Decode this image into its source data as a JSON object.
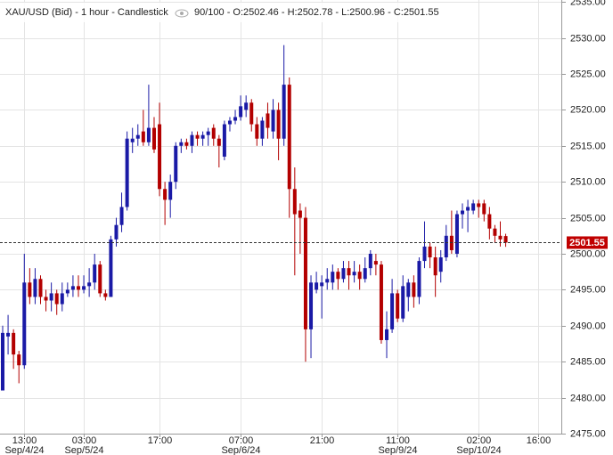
{
  "chart_data": {
    "type": "candlestick",
    "title": "XAU/USD (Bid) - 1 hour - Candlestick",
    "subtitle": "90/100 - O:2502.46 - H:2502.78 - L:2500.96 - C:2501.55",
    "categories": [
      null,
      null,
      null,
      null,
      "13:00",
      null,
      null,
      null,
      null,
      null,
      null,
      null,
      null,
      null,
      null,
      "03:00",
      null,
      null,
      null,
      null,
      null,
      null,
      null,
      null,
      null,
      null,
      null,
      null,
      null,
      "17:00",
      null,
      null,
      null,
      null,
      null,
      null,
      null,
      null,
      null,
      null,
      null,
      null,
      null,
      null,
      "07:00",
      null,
      null,
      null,
      null,
      null,
      null,
      null,
      null,
      null,
      null,
      null,
      null,
      null,
      null,
      "21:00",
      null,
      null,
      null,
      null,
      null,
      null,
      null,
      null,
      null,
      null,
      null,
      null,
      null,
      "11:00",
      null,
      null,
      null,
      null,
      null,
      null,
      null,
      null,
      null,
      null,
      null,
      null,
      null,
      null,
      "02:00",
      null,
      null,
      null,
      null,
      null,
      null,
      null,
      null,
      null,
      null,
      "16:00"
    ],
    "x_dates": [
      null,
      null,
      null,
      null,
      "Sep/4/24",
      null,
      null,
      null,
      null,
      null,
      null,
      null,
      null,
      null,
      null,
      "Sep/5/24",
      null,
      null,
      null,
      null,
      null,
      null,
      null,
      null,
      null,
      null,
      null,
      null,
      null,
      null,
      null,
      null,
      null,
      null,
      null,
      null,
      null,
      null,
      null,
      null,
      null,
      null,
      null,
      null,
      "Sep/6/24",
      null,
      null,
      null,
      null,
      null,
      null,
      null,
      null,
      null,
      null,
      null,
      null,
      null,
      null,
      null,
      null,
      null,
      null,
      null,
      null,
      null,
      null,
      null,
      null,
      null,
      null,
      null,
      null,
      "Sep/9/24",
      null,
      null,
      null,
      null,
      null,
      null,
      null,
      null,
      null,
      null,
      null,
      null,
      null,
      null,
      "Sep/10/24",
      null,
      null,
      null,
      null,
      null,
      null,
      null,
      null,
      null,
      null,
      null
    ],
    "open": [
      2481,
      2488.5,
      2489,
      2486,
      2484.5,
      2496,
      2494,
      2496.5,
      2494,
      2493.5,
      2494.5,
      2493,
      2494.5,
      2495,
      2495.5,
      2495,
      2495.5,
      2496,
      2498.5,
      2494.5,
      2494,
      2502,
      2504,
      2506.5,
      2515.5,
      2516,
      2517,
      2515.5,
      2517.5,
      2518,
      2509,
      2507.5,
      2510,
      2515,
      2515.5,
      2515,
      2516.5,
      2516,
      2516.5,
      2517.5,
      2516,
      2513.5,
      2518,
      2518.5,
      2519,
      2520,
      2521,
      2518,
      2516,
      2519.5,
      2517,
      2520,
      2516,
      2523.5,
      2509,
      2506,
      2505,
      2489.5,
      2495,
      2495.5,
      2496,
      2496,
      2497.5,
      2496.5,
      2498,
      2497,
      2497.5,
      2496.5,
      2498,
      2499,
      2498.5,
      2488,
      2489.5,
      2494.5,
      2491,
      2494,
      2496,
      2494,
      2499,
      2501,
      2499.5,
      2497.5,
      2499.5,
      2502.5,
      2500,
      2505.5,
      2506,
      2506,
      2507,
      2507,
      2505.5,
      2503.5,
      2502.5,
      2502.46,
      null,
      null,
      null,
      null,
      null,
      null
    ],
    "high": [
      2490,
      2491.5,
      2489.5,
      2486.5,
      2500,
      2498,
      2498,
      2497,
      2495,
      2496,
      2495,
      2496,
      2496,
      2497,
      2497,
      2497,
      2498,
      2500,
      2499,
      2495,
      2502.5,
      2505,
      2508.5,
      2517,
      2517.5,
      2518,
      2520,
      2523.5,
      2519,
      2521,
      2510,
      2511,
      2515.5,
      2516,
      2516,
      2517,
      2517,
      2517,
      2517.5,
      2518,
      2516.5,
      2518.5,
      2519,
      2520,
      2522,
      2522,
      2521.5,
      2519,
      2519,
      2521,
      2521.5,
      2521,
      2529,
      2524.5,
      2512,
      2507,
      2506.5,
      2497,
      2497.5,
      2497,
      2498,
      2498.5,
      2498,
      2499,
      2499,
      2499,
      2498.5,
      2499.5,
      2500.5,
      2500,
      2499,
      2492,
      2496.5,
      2495,
      2497,
      2496.5,
      2497,
      2499.5,
      2504.5,
      2501.5,
      2501,
      2500.5,
      2504,
      2506,
      2506,
      2507,
      2507.5,
      2507.5,
      2507.5,
      2507.5,
      2506.5,
      2504,
      2504.5,
      2502.78,
      null,
      null,
      null,
      null,
      null,
      null
    ],
    "low": [
      2481,
      2486,
      2484,
      2482,
      2484,
      2493,
      2493,
      2493,
      2492,
      2492,
      2491.5,
      2492,
      2494,
      2494,
      2494,
      2494.5,
      2494,
      2495,
      2494,
      2493.5,
      2494,
      2501,
      2503,
      2506,
      2514,
      2515,
      2515,
      2515,
      2514,
      2508,
      2504,
      2505,
      2509,
      2514,
      2514.5,
      2514,
      2515,
      2515,
      2515,
      2515,
      2512,
      2513,
      2517,
      2518,
      2518.5,
      2519,
      2517,
      2515,
      2515,
      2516,
      2516,
      2513,
      2515,
      2505,
      2497,
      2500,
      2485,
      2485.5,
      2494.5,
      2491,
      2495,
      2495,
      2495,
      2496,
      2495,
      2496,
      2495,
      2496,
      2497,
      2497,
      2487.5,
      2485.5,
      2489,
      2490.5,
      2490.5,
      2492,
      2492.5,
      2493,
      2498,
      2498,
      2494,
      2496,
      2499,
      2500,
      2499.5,
      2503.5,
      2503,
      2505.5,
      2505,
      2504.5,
      2502,
      2501.5,
      2501,
      2500.96,
      null,
      null,
      null,
      null,
      null,
      null
    ],
    "close": [
      2489,
      2489,
      2486,
      2484.5,
      2496,
      2494,
      2496.5,
      2494,
      2493.5,
      2494.5,
      2493,
      2494.5,
      2495,
      2495.5,
      2495,
      2495.5,
      2496,
      2498.5,
      2494.5,
      2494,
      2502,
      2504,
      2506.5,
      2516,
      2516,
      2516.5,
      2515.5,
      2517.5,
      2514.5,
      2509,
      2507.5,
      2510,
      2515,
      2515.5,
      2515,
      2516.5,
      2516,
      2516.5,
      2517,
      2516,
      2515,
      2518,
      2518.5,
      2519,
      2520.5,
      2521,
      2518,
      2516,
      2518.5,
      2517.5,
      2520,
      2516,
      2523.5,
      2509,
      2505.5,
      2505,
      2489.5,
      2496,
      2496,
      2496,
      2496.5,
      2497.5,
      2496.5,
      2498,
      2497,
      2497.5,
      2496.5,
      2498,
      2500,
      2498.5,
      2488,
      2489.5,
      2494.5,
      2491,
      2495.5,
      2496,
      2494,
      2499,
      2501,
      2499.5,
      2497,
      2499.5,
      2502.5,
      2500.5,
      2505.5,
      2506,
      2506.5,
      2507,
      2506.5,
      2505.5,
      2503.5,
      2502.5,
      2502,
      2501.55,
      null,
      null,
      null,
      null,
      null,
      null
    ],
    "up_color": "#1a1aa6",
    "down_color": "#b30000",
    "last_price": {
      "value": 2501.55,
      "label": "2501.55"
    },
    "last_price_color": "#c00000",
    "ylim": [
      2475,
      2535.27
    ],
    "yticks": [
      {
        "value": 2475,
        "label": "2475.00"
      },
      {
        "value": 2480,
        "label": "2480.00"
      },
      {
        "value": 2485,
        "label": "2485.00"
      },
      {
        "value": 2490,
        "label": "2490.00"
      },
      {
        "value": 2495,
        "label": "2495.00"
      },
      {
        "value": 2500,
        "label": "2500.00"
      },
      {
        "value": 2505,
        "label": "2505.00"
      },
      {
        "value": 2510,
        "label": "2510.00"
      },
      {
        "value": 2515,
        "label": "2515.00"
      },
      {
        "value": 2520,
        "label": "2520.00"
      },
      {
        "value": 2525,
        "label": "2525.00"
      },
      {
        "value": 2530,
        "label": "2530.00"
      },
      {
        "value": 2535,
        "label": "2535.00"
      }
    ],
    "grid": true
  }
}
